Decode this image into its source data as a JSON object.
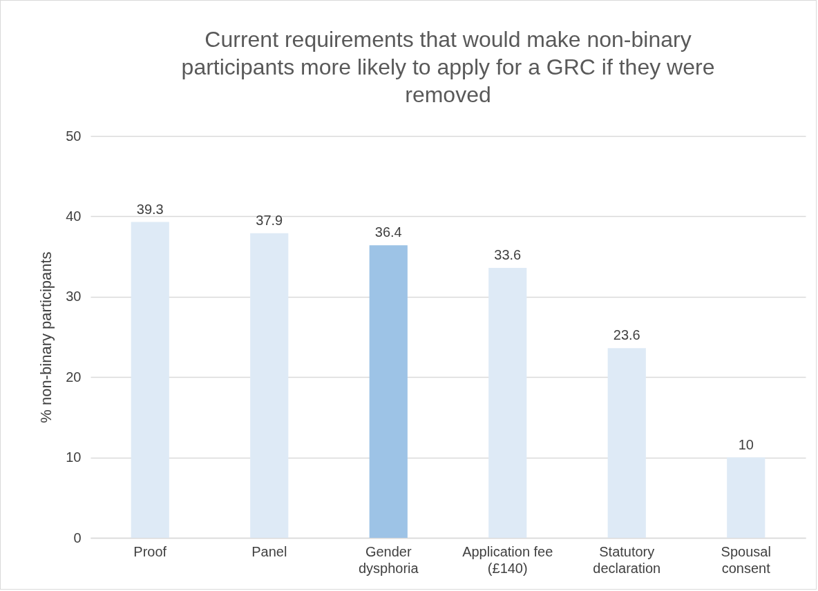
{
  "chart_data": {
    "type": "bar",
    "title": "Current requirements that would make non-binary participants more likely to apply for a GRC if they were removed",
    "ylabel": "% non-binary participants",
    "categories": [
      "Proof",
      "Panel",
      "Gender\ndysphoria",
      "Application fee\n(£140)",
      "Statutory\ndeclaration",
      "Spousal\nconsent"
    ],
    "values": [
      39.3,
      37.9,
      36.4,
      33.6,
      23.6,
      10
    ],
    "colors": [
      "#deeaf6",
      "#deeaf6",
      "#9dc3e6",
      "#deeaf6",
      "#deeaf6",
      "#deeaf6"
    ],
    "ylim": [
      0,
      50
    ],
    "yticks": [
      0,
      10,
      20,
      30,
      40,
      50
    ],
    "grid": "y",
    "data_labels": true
  }
}
